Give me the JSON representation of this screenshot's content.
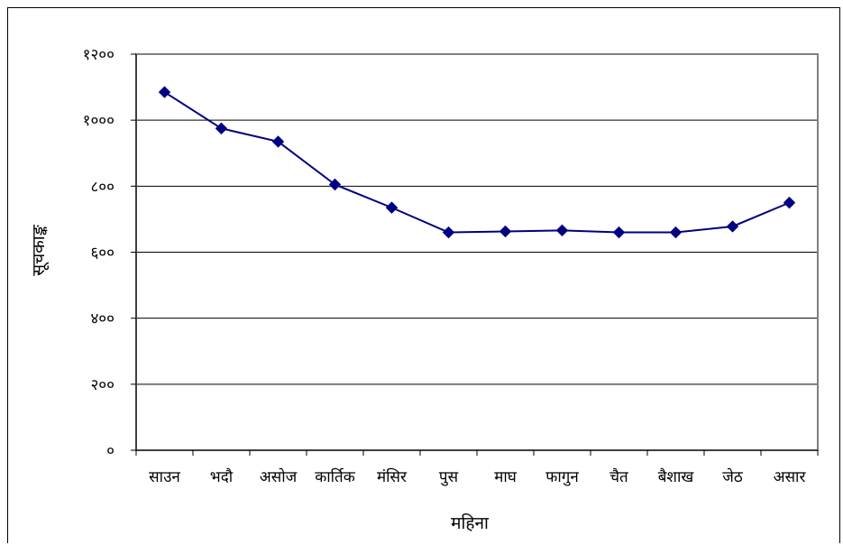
{
  "chart_data": {
    "type": "line",
    "title": "",
    "xlabel": "महिना",
    "ylabel": "सूचकाङ्क",
    "categories": [
      "साउन",
      "भदौ",
      "असोज",
      "कार्तिक",
      "मंसिर",
      "पुस",
      "माघ",
      "फागुन",
      "चैत",
      "बैशाख",
      "जेठ",
      "असार"
    ],
    "series": [
      {
        "values": [
          1085,
          975,
          935,
          805,
          735,
          660,
          663,
          666,
          660,
          660,
          678,
          750
        ],
        "color": "#000080",
        "marker": "diamond"
      }
    ],
    "ylim": [
      0,
      1200
    ],
    "yticks": [
      0,
      200,
      400,
      600,
      800,
      1000,
      1200
    ],
    "ytick_labels": [
      "०",
      "२००",
      "४००",
      "६००",
      "८००",
      "१०००",
      "१२००"
    ],
    "grid": true,
    "legend": "none",
    "plot_border_color": "#808080",
    "gridline_color": "#000000"
  }
}
